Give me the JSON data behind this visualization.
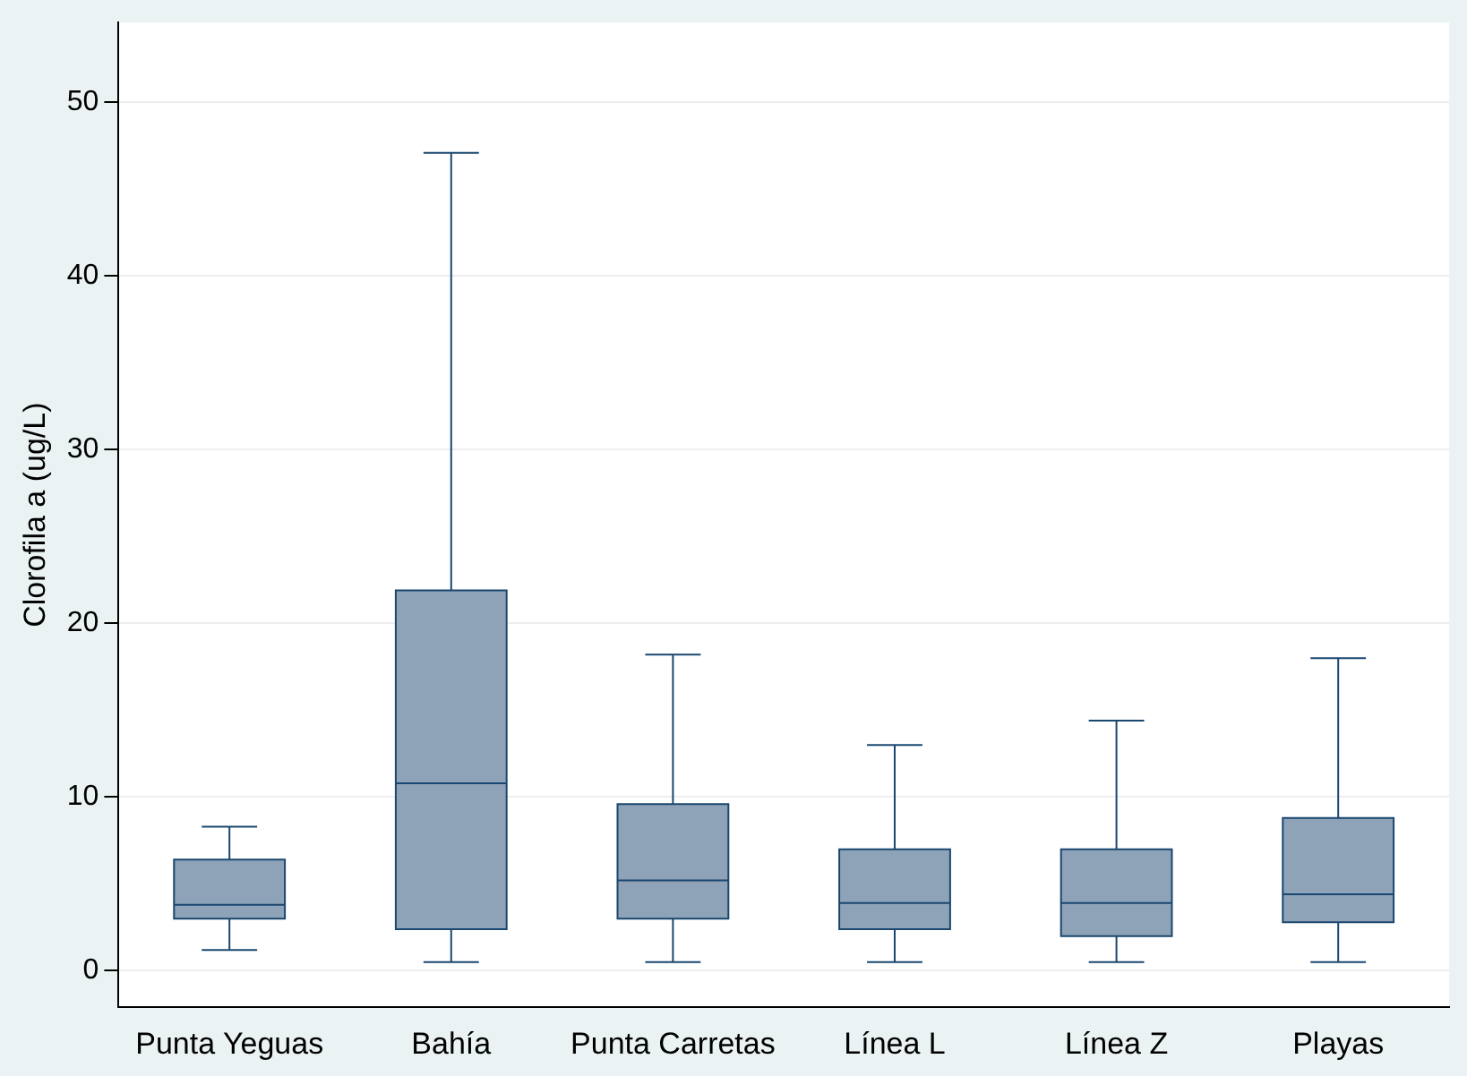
{
  "chart_data": {
    "type": "box",
    "ylabel": "Clorofila a (ug/L)",
    "categories": [
      "Punta Yeguas",
      "Bahía",
      "Punta Carretas",
      "Línea L",
      "Línea Z",
      "Playas"
    ],
    "boxes": [
      {
        "low": 1.2,
        "q1": 3.0,
        "median": 3.8,
        "q3": 6.4,
        "high": 8.3
      },
      {
        "low": 0.5,
        "q1": 2.4,
        "median": 10.8,
        "q3": 21.9,
        "high": 47.1
      },
      {
        "low": 0.5,
        "q1": 3.0,
        "median": 5.2,
        "q3": 9.6,
        "high": 18.2
      },
      {
        "low": 0.5,
        "q1": 2.4,
        "median": 3.9,
        "q3": 7.0,
        "high": 13.0
      },
      {
        "low": 0.5,
        "q1": 2.0,
        "median": 3.9,
        "q3": 7.0,
        "high": 14.4
      },
      {
        "low": 0.5,
        "q1": 2.8,
        "median": 4.4,
        "q3": 8.8,
        "high": 18.0
      }
    ],
    "color": "#8ea3b8",
    "ylim": [
      -2.1,
      54.6
    ],
    "yticks": [
      0,
      10,
      20,
      30,
      40,
      50
    ],
    "grid": "y",
    "legend": false
  }
}
